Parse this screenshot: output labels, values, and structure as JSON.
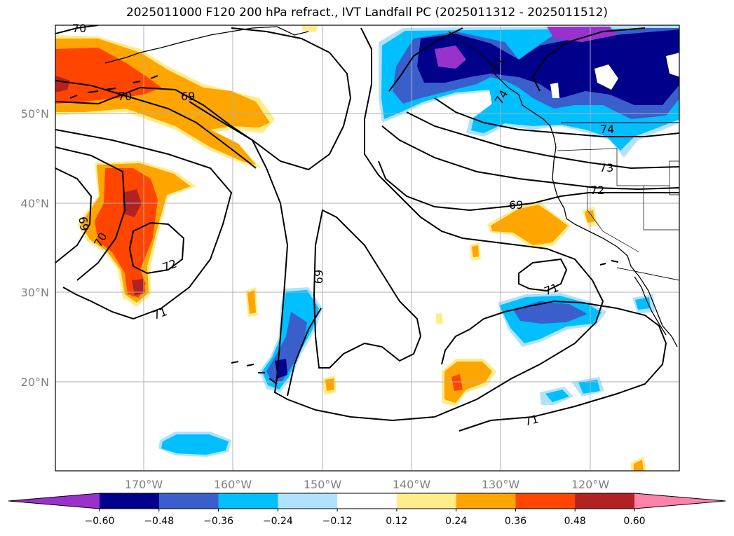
{
  "title": "2025011000 F120 200 hPa refract., IVT Landfall PC (2025011312 - 2025011512)",
  "map": {
    "lon_ticks": [
      "170°W",
      "160°W",
      "150°W",
      "140°W",
      "130°W",
      "120°W"
    ],
    "lat_ticks": [
      "50°N",
      "40°N",
      "30°N",
      "20°N"
    ],
    "contour_labels": [
      "70",
      "70",
      "69",
      "69",
      "70",
      "72",
      "71",
      "69",
      "71",
      "69",
      "71",
      "71",
      "72",
      "73",
      "74",
      "74"
    ]
  },
  "colorbar": {
    "colors": [
      "#9932cc",
      "#00008b",
      "#3a5fcd",
      "#00bfff",
      "#b0e2ff",
      "#ffffff",
      "#ffec8b",
      "#ffa500",
      "#ff4500",
      "#b22222",
      "#ff82ab"
    ],
    "tick_labels": [
      "−0.60",
      "−0.48",
      "−0.36",
      "−0.24",
      "−0.12",
      "0.12",
      "0.24",
      "0.36",
      "0.48",
      "0.60"
    ]
  },
  "colors": {
    "grid": "#b0b0b0",
    "coast": "#000000"
  }
}
